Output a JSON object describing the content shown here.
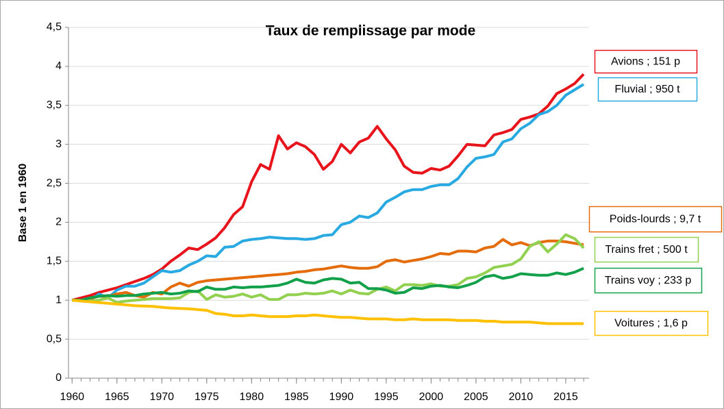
{
  "chart_data": {
    "type": "line",
    "title": "Taux de remplissage par mode",
    "y_label": "Base 1 en 1960",
    "x": [
      1960,
      1961,
      1962,
      1963,
      1964,
      1965,
      1966,
      1967,
      1968,
      1969,
      1970,
      1971,
      1972,
      1973,
      1974,
      1975,
      1976,
      1977,
      1978,
      1979,
      1980,
      1981,
      1982,
      1983,
      1984,
      1985,
      1986,
      1987,
      1988,
      1989,
      1990,
      1991,
      1992,
      1993,
      1994,
      1995,
      1996,
      1997,
      1998,
      1999,
      2000,
      2001,
      2002,
      2003,
      2004,
      2005,
      2006,
      2007,
      2008,
      2009,
      2010,
      2011,
      2012,
      2013,
      2014,
      2015,
      2016,
      2017
    ],
    "xlim": [
      1959.6,
      2017.6
    ],
    "xticks": [
      1960,
      1965,
      1970,
      1975,
      1980,
      1985,
      1990,
      1995,
      2000,
      2005,
      2010,
      2015
    ],
    "ylim": [
      0,
      4.5
    ],
    "yticks": [
      0,
      {
        "value": 0.5,
        "label": "0,5"
      },
      1,
      {
        "value": 1.5,
        "label": "1,5"
      },
      2,
      {
        "value": 2.5,
        "label": "2,5"
      },
      3,
      {
        "value": 3.5,
        "label": "3,5"
      },
      4,
      {
        "value": 4.5,
        "label": "4,5"
      }
    ],
    "grid": true,
    "series": [
      {
        "name": "Avions ; 151 p",
        "color": "#e8141b",
        "values": [
          1.0,
          1.03,
          1.06,
          1.1,
          1.13,
          1.16,
          1.2,
          1.24,
          1.28,
          1.33,
          1.4,
          1.5,
          1.58,
          1.67,
          1.65,
          1.72,
          1.8,
          1.93,
          2.1,
          2.2,
          2.52,
          2.74,
          2.68,
          3.11,
          2.94,
          3.02,
          2.97,
          2.87,
          2.68,
          2.78,
          3.0,
          2.89,
          3.03,
          3.08,
          3.23,
          3.07,
          2.93,
          2.72,
          2.64,
          2.63,
          2.69,
          2.67,
          2.72,
          2.85,
          3.0,
          2.99,
          2.98,
          3.12,
          3.15,
          3.19,
          3.32,
          3.35,
          3.39,
          3.49,
          3.65,
          3.71,
          3.78,
          3.9
        ]
      },
      {
        "name": "Fluvial ; 950 t",
        "color": "#29a9e1",
        "values": [
          1.0,
          1.0,
          1.0,
          1.08,
          1.03,
          1.13,
          1.18,
          1.18,
          1.22,
          1.3,
          1.38,
          1.36,
          1.38,
          1.45,
          1.5,
          1.57,
          1.56,
          1.68,
          1.69,
          1.76,
          1.78,
          1.79,
          1.81,
          1.8,
          1.79,
          1.79,
          1.78,
          1.79,
          1.83,
          1.84,
          1.97,
          2.0,
          2.08,
          2.06,
          2.12,
          2.26,
          2.32,
          2.39,
          2.42,
          2.42,
          2.46,
          2.48,
          2.48,
          2.56,
          2.71,
          2.82,
          2.84,
          2.87,
          3.03,
          3.07,
          3.2,
          3.27,
          3.38,
          3.42,
          3.5,
          3.63,
          3.7,
          3.77
        ]
      },
      {
        "name": "Poids-lourds ; 9,7 t",
        "color": "#e46c0a",
        "values": [
          1.0,
          1.0,
          1.02,
          1.05,
          1.05,
          1.08,
          1.1,
          1.06,
          1.04,
          1.1,
          1.08,
          1.17,
          1.22,
          1.18,
          1.23,
          1.25,
          1.26,
          1.27,
          1.28,
          1.29,
          1.3,
          1.31,
          1.32,
          1.33,
          1.34,
          1.36,
          1.37,
          1.39,
          1.4,
          1.42,
          1.44,
          1.42,
          1.41,
          1.41,
          1.43,
          1.5,
          1.52,
          1.49,
          1.51,
          1.53,
          1.56,
          1.6,
          1.59,
          1.63,
          1.63,
          1.62,
          1.67,
          1.69,
          1.78,
          1.71,
          1.74,
          1.7,
          1.74,
          1.76,
          1.76,
          1.75,
          1.73,
          1.71
        ]
      },
      {
        "name": "Trains fret ; 500 t",
        "color": "#92d050",
        "values": [
          1.0,
          1.0,
          0.99,
          1.0,
          1.03,
          0.97,
          0.99,
          1.0,
          1.01,
          1.02,
          1.02,
          1.02,
          1.03,
          1.1,
          1.12,
          1.01,
          1.07,
          1.04,
          1.05,
          1.08,
          1.04,
          1.07,
          1.01,
          1.01,
          1.07,
          1.07,
          1.09,
          1.08,
          1.09,
          1.12,
          1.08,
          1.13,
          1.09,
          1.08,
          1.14,
          1.17,
          1.12,
          1.2,
          1.2,
          1.19,
          1.21,
          1.18,
          1.18,
          1.2,
          1.28,
          1.3,
          1.35,
          1.42,
          1.44,
          1.46,
          1.53,
          1.69,
          1.75,
          1.62,
          1.72,
          1.84,
          1.79,
          1.67
        ]
      },
      {
        "name": "Trains voy ; 233 p",
        "color": "#12a14a",
        "values": [
          1.0,
          1.0,
          1.03,
          1.05,
          1.06,
          1.05,
          1.06,
          1.06,
          1.08,
          1.09,
          1.1,
          1.08,
          1.09,
          1.12,
          1.11,
          1.17,
          1.14,
          1.14,
          1.17,
          1.16,
          1.17,
          1.17,
          1.18,
          1.19,
          1.22,
          1.27,
          1.23,
          1.22,
          1.26,
          1.28,
          1.27,
          1.22,
          1.23,
          1.15,
          1.15,
          1.13,
          1.09,
          1.1,
          1.16,
          1.15,
          1.18,
          1.19,
          1.17,
          1.16,
          1.19,
          1.23,
          1.3,
          1.32,
          1.28,
          1.3,
          1.34,
          1.33,
          1.32,
          1.32,
          1.35,
          1.33,
          1.36,
          1.41
        ]
      },
      {
        "name": "Voitures ; 1,6 p",
        "color": "#ffc000",
        "values": [
          1.0,
          0.99,
          0.98,
          0.97,
          0.96,
          0.95,
          0.94,
          0.93,
          0.925,
          0.92,
          0.91,
          0.9,
          0.895,
          0.89,
          0.88,
          0.87,
          0.83,
          0.82,
          0.8,
          0.8,
          0.81,
          0.8,
          0.79,
          0.79,
          0.79,
          0.8,
          0.8,
          0.81,
          0.8,
          0.79,
          0.78,
          0.78,
          0.77,
          0.76,
          0.76,
          0.76,
          0.75,
          0.75,
          0.76,
          0.75,
          0.75,
          0.75,
          0.75,
          0.74,
          0.74,
          0.74,
          0.73,
          0.73,
          0.72,
          0.72,
          0.72,
          0.72,
          0.71,
          0.7,
          0.7,
          0.7,
          0.7,
          0.7
        ]
      }
    ]
  }
}
